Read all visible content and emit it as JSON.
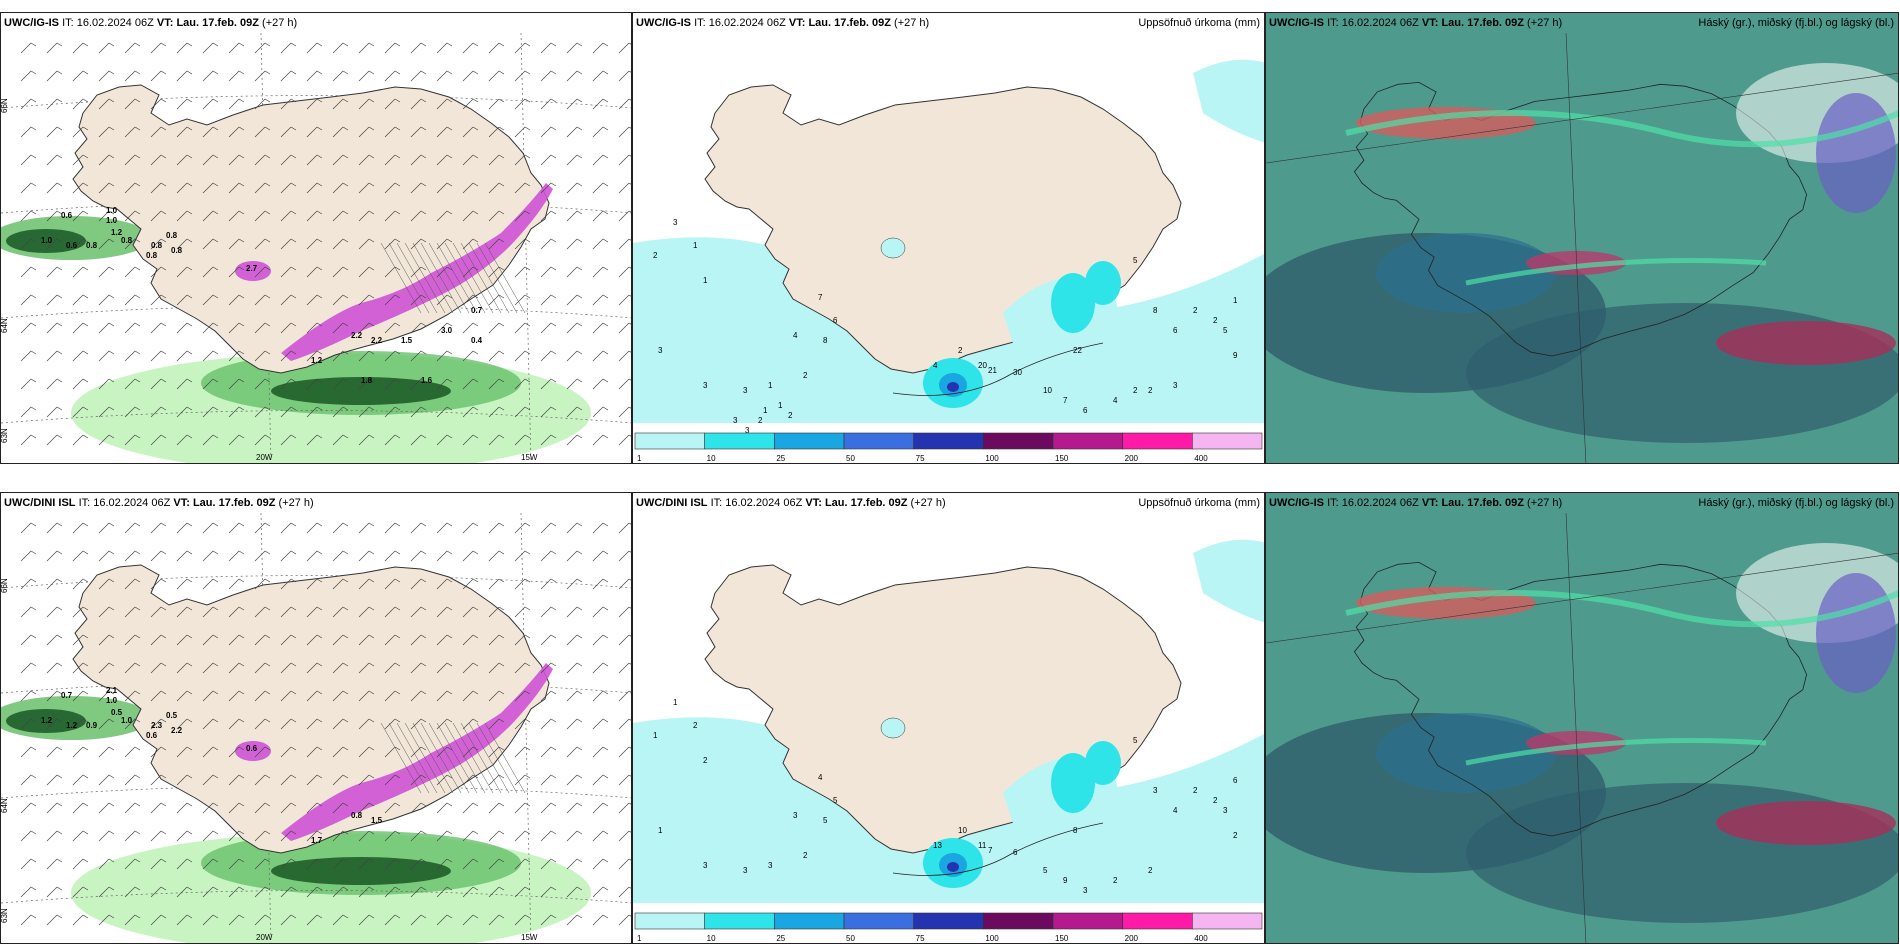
{
  "panels": [
    {
      "id": "p1",
      "model": "UWC/IG-IS",
      "it_label": "IT:",
      "it_value": "16.02.2024 06Z",
      "vt_label": "VT:",
      "vt_value": "Lau. 17.feb. 09Z",
      "lead": "(+27 h)",
      "right_title": "",
      "axis": {
        "lat_top": "66N",
        "lat_mid": "64N",
        "lat_bot": "63N",
        "lon_left": "20W",
        "lon_right": "15W"
      },
      "numbers": [
        "0.6",
        "1.0",
        "0.6",
        "1.0",
        "1.0",
        "0.8",
        "0.8",
        "0.8",
        "1.2",
        "0.8",
        "0.8",
        "0.8",
        "2.2",
        "2.7",
        "2.2",
        "1.2",
        "1.8",
        "1.6",
        "0.7",
        "1.5",
        "3.0",
        "0.4"
      ]
    },
    {
      "id": "p2",
      "model": "UWC/IG-IS",
      "it_label": "IT:",
      "it_value": "16.02.2024 06Z",
      "vt_label": "VT:",
      "vt_value": "Lau. 17.feb. 09Z",
      "lead": "(+27 h)",
      "right_title": "Uppsöfnuð úrkoma (mm)",
      "numbers": [
        "3",
        "1",
        "2",
        "1",
        "3",
        "3",
        "3",
        "1",
        "2",
        "7",
        "4",
        "6",
        "8",
        "2",
        "4",
        "20",
        "30",
        "21",
        "22",
        "5",
        "8",
        "6",
        "4",
        "2",
        "2",
        "2",
        "1",
        "5",
        "9",
        "10",
        "7",
        "6",
        "2",
        "3",
        "3",
        "3",
        "2",
        "1",
        "1",
        "2"
      ],
      "colorbar": [
        "1",
        "10",
        "25",
        "50",
        "75",
        "100",
        "150",
        "200",
        "400"
      ]
    },
    {
      "id": "p3",
      "model": "UWC/IG-IS",
      "it_label": "IT:",
      "it_value": "16.02.2024 06Z",
      "vt_label": "VT:",
      "vt_value": "Lau. 17.feb. 09Z",
      "lead": "(+27 h)",
      "right_title": "Háský (gr.), miðský (fj.bl.) og lágský (bl.)"
    },
    {
      "id": "p4",
      "model": "UWC/DINI ISL",
      "it_label": "IT:",
      "it_value": "16.02.2024 06Z",
      "vt_label": "VT:",
      "vt_value": "Lau. 17.feb. 09Z",
      "lead": "(+27 h)",
      "right_title": "",
      "axis": {
        "lat_top": "66N",
        "lat_mid": "64N",
        "lat_bot": "63N",
        "lon_left": "20W",
        "lon_right": "15W"
      },
      "numbers": [
        "0.7",
        "1.2",
        "1.2",
        "2.1",
        "1.0",
        "1.0",
        "2.3",
        "2.2",
        "0.5",
        "0.5",
        "0.9",
        "0.6",
        "0.8",
        "0.6",
        "1.5",
        "1.7"
      ]
    },
    {
      "id": "p5",
      "model": "UWC/DINI ISL",
      "it_label": "IT:",
      "it_value": "16.02.2024 06Z",
      "vt_label": "VT:",
      "vt_value": "Lau. 17.feb. 09Z",
      "lead": "(+27 h)",
      "right_title": "Uppsöfnuð úrkoma (mm)",
      "numbers": [
        "1",
        "2",
        "1",
        "2",
        "1",
        "3",
        "3",
        "3",
        "2",
        "4",
        "3",
        "5",
        "5",
        "10",
        "13",
        "11",
        "6",
        "7",
        "8",
        "5",
        "3",
        "4",
        "2",
        "2",
        "2",
        "2",
        "6",
        "3",
        "2",
        "5",
        "9",
        "3"
      ],
      "colorbar": [
        "1",
        "10",
        "25",
        "50",
        "75",
        "100",
        "150",
        "200",
        "400"
      ]
    },
    {
      "id": "p6",
      "model": "UWC/IG-IS",
      "it_label": "IT:",
      "it_value": "16.02.2024 06Z",
      "vt_label": "VT:",
      "vt_value": "Lau. 17.feb. 09Z",
      "lead": "(+27 h)",
      "right_title": "Háský (gr.), miðský (fj.bl.) og lágský (bl.)"
    }
  ],
  "colors": {
    "land": "#f2e6d8",
    "precip_light": "#b9f5f5",
    "precip_cyan": "#2ee4e9",
    "precip_blue": "#1aa6e0",
    "precip_mid": "#3b6fe0",
    "precip_dark": "#2433b0",
    "purple": "#6b0a5e",
    "magenta": "#b21a8d",
    "pink": "#ff1aa8",
    "light_pink": "#f5b5f0",
    "snow_magenta": "#cf52d6",
    "green_light": "#bdf2b5",
    "green_mid": "#68c06a",
    "green_dark": "#1f5e2a",
    "cloud_teal": "#4e9b8d",
    "cloud_dark": "#2f5e6c",
    "cloud_blue": "#2c6f8f"
  }
}
